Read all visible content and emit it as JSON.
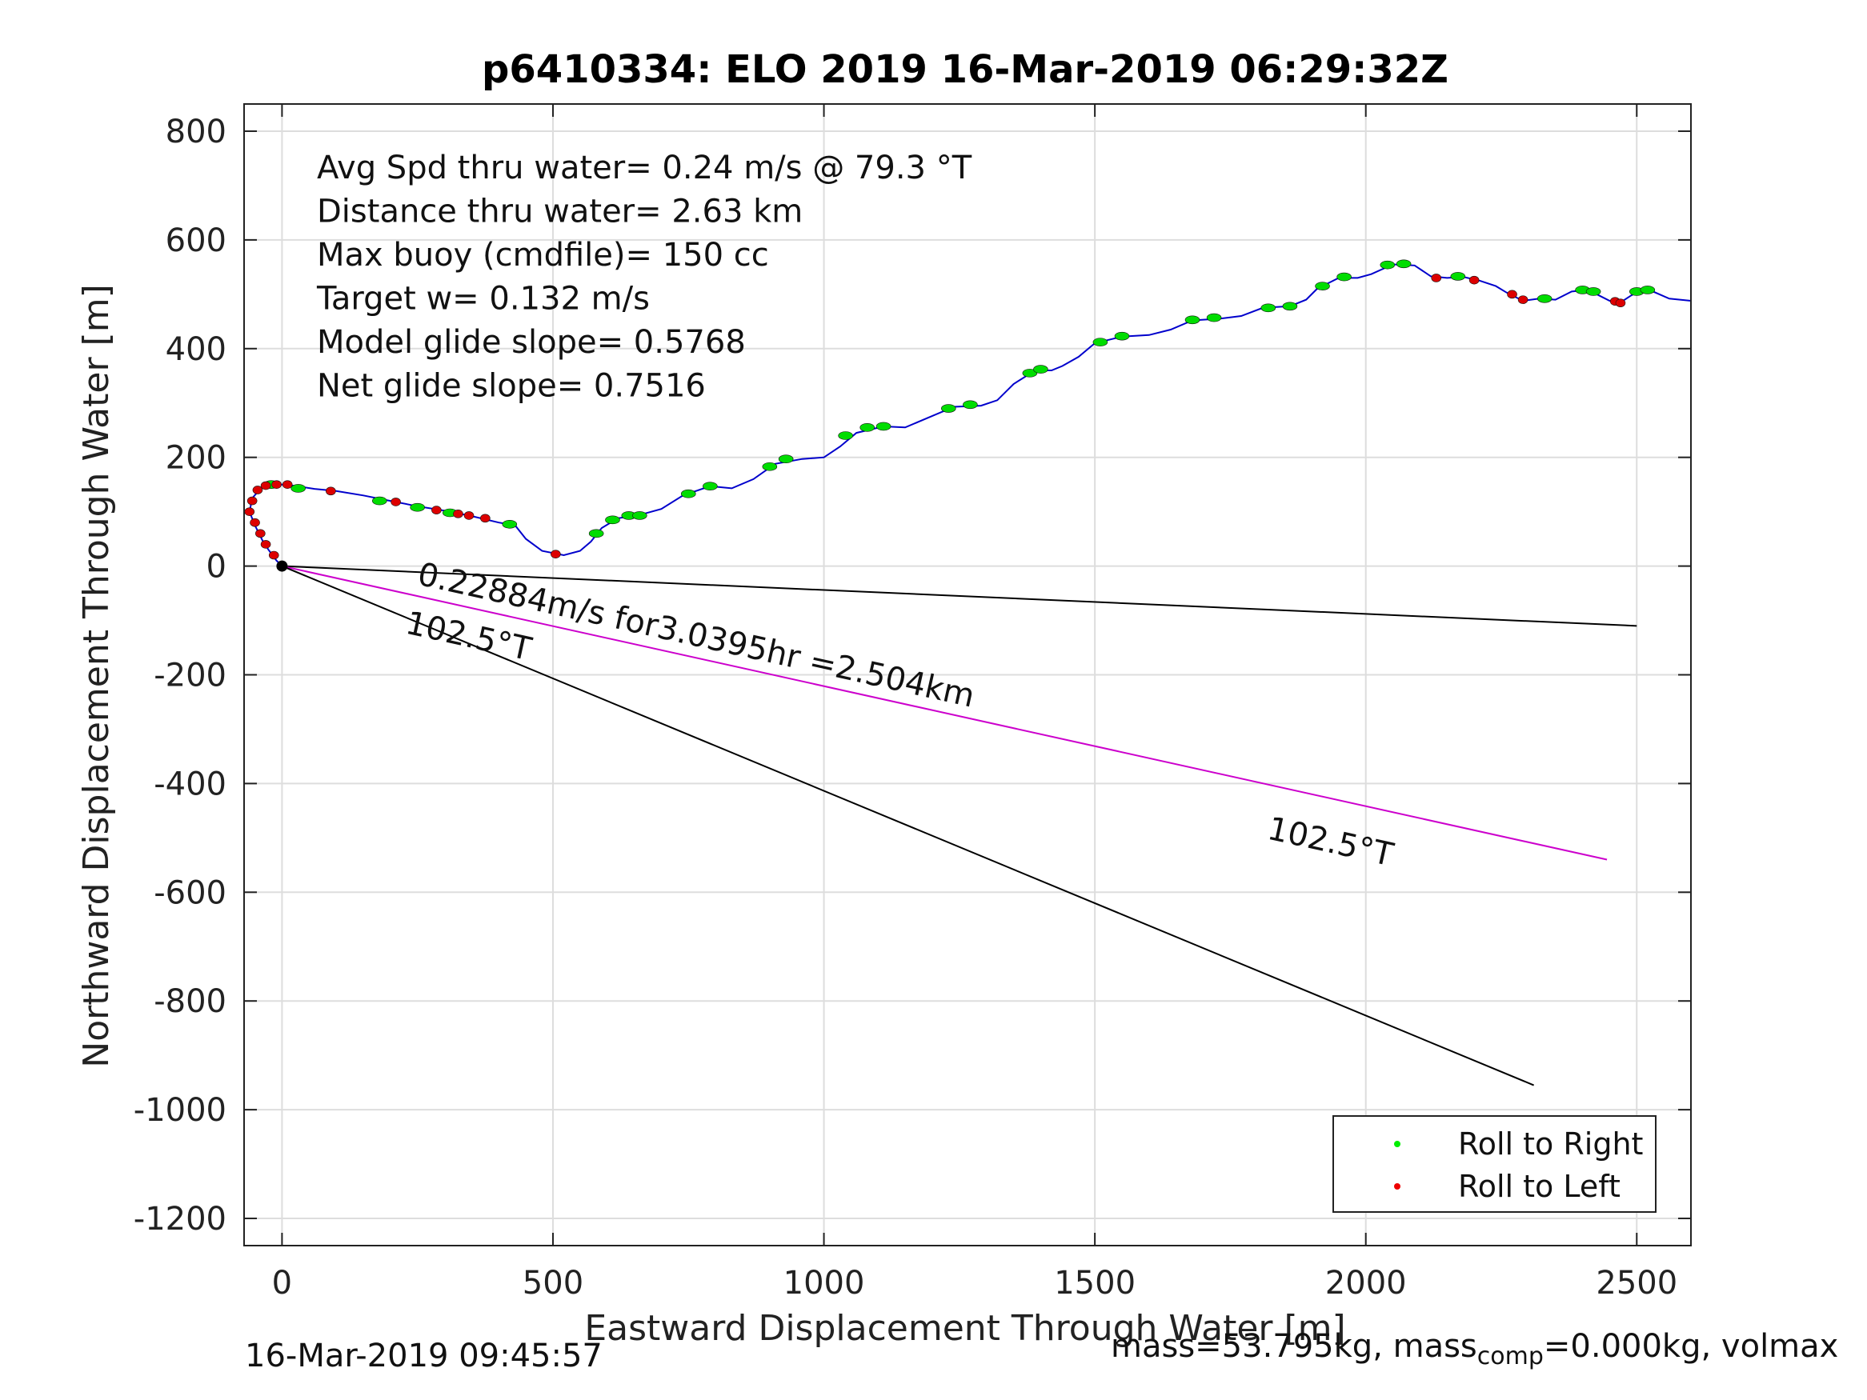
{
  "chart_data": {
    "type": "scatter",
    "title": "p6410334: ELO 2019 16-Mar-2019 06:29:32Z",
    "xlabel": "Eastward Displacement Through Water [m]",
    "ylabel": "Northward Displacement Through Water [m]",
    "xlim": [
      -70,
      2600
    ],
    "ylim": [
      -1250,
      850
    ],
    "xticks": [
      0,
      500,
      1000,
      1500,
      2000,
      2500
    ],
    "yticks": [
      800,
      600,
      400,
      200,
      0,
      -200,
      -400,
      -600,
      -800,
      -1000,
      -1200
    ],
    "grid": true,
    "legend_position": "bottom-right",
    "legend": [
      {
        "label": "Roll to Right",
        "color": "#00ee00"
      },
      {
        "label": "Roll to Left",
        "color": "#ee0000"
      }
    ],
    "stats": [
      "Avg Spd thru water=  0.24 m/s @  79.3 °T",
      "Distance thru water=  2.63 km",
      "Max buoy (cmdfile)= 150 cc",
      "Target w= 0.132 m/s",
      "Model glide slope= 0.5768",
      "Net glide slope= 0.7516"
    ],
    "annotations": [
      {
        "text": "0.22884m/s for3.0395hr =2.504km",
        "x": 250,
        "y": 0
      },
      {
        "text": "102.5°T",
        "x": 225,
        "y": -80
      },
      {
        "text": "102.5°T",
        "x": 1810,
        "y": -480
      }
    ],
    "track": [
      [
        0,
        0
      ],
      [
        -10,
        10
      ],
      [
        -25,
        30
      ],
      [
        -35,
        45
      ],
      [
        -50,
        75
      ],
      [
        -60,
        100
      ],
      [
        -55,
        125
      ],
      [
        -40,
        142
      ],
      [
        -20,
        150
      ],
      [
        0,
        150
      ],
      [
        20,
        148
      ],
      [
        60,
        142
      ],
      [
        100,
        138
      ],
      [
        150,
        130
      ],
      [
        200,
        120
      ],
      [
        250,
        110
      ],
      [
        300,
        102
      ],
      [
        350,
        92
      ],
      [
        400,
        80
      ],
      [
        430,
        75
      ],
      [
        450,
        50
      ],
      [
        480,
        28
      ],
      [
        520,
        20
      ],
      [
        550,
        28
      ],
      [
        570,
        45
      ],
      [
        590,
        70
      ],
      [
        620,
        88
      ],
      [
        660,
        94
      ],
      [
        700,
        105
      ],
      [
        740,
        130
      ],
      [
        790,
        147
      ],
      [
        830,
        143
      ],
      [
        870,
        160
      ],
      [
        910,
        188
      ],
      [
        960,
        197
      ],
      [
        1000,
        200
      ],
      [
        1030,
        220
      ],
      [
        1060,
        245
      ],
      [
        1110,
        257
      ],
      [
        1150,
        255
      ],
      [
        1190,
        272
      ],
      [
        1240,
        293
      ],
      [
        1290,
        295
      ],
      [
        1320,
        305
      ],
      [
        1350,
        335
      ],
      [
        1390,
        360
      ],
      [
        1420,
        360
      ],
      [
        1440,
        368
      ],
      [
        1470,
        385
      ],
      [
        1500,
        410
      ],
      [
        1550,
        422
      ],
      [
        1600,
        425
      ],
      [
        1640,
        435
      ],
      [
        1680,
        452
      ],
      [
        1730,
        455
      ],
      [
        1770,
        460
      ],
      [
        1810,
        475
      ],
      [
        1860,
        478
      ],
      [
        1890,
        490
      ],
      [
        1910,
        510
      ],
      [
        1950,
        530
      ],
      [
        1985,
        530
      ],
      [
        2010,
        537
      ],
      [
        2050,
        555
      ],
      [
        2090,
        553
      ],
      [
        2120,
        533
      ],
      [
        2150,
        530
      ],
      [
        2180,
        532
      ],
      [
        2210,
        525
      ],
      [
        2240,
        515
      ],
      [
        2260,
        503
      ],
      [
        2290,
        488
      ],
      [
        2320,
        492
      ],
      [
        2350,
        490
      ],
      [
        2380,
        505
      ],
      [
        2410,
        508
      ],
      [
        2430,
        498
      ],
      [
        2450,
        488
      ],
      [
        2470,
        485
      ],
      [
        2490,
        498
      ],
      [
        2510,
        508
      ],
      [
        2530,
        505
      ],
      [
        2560,
        492
      ],
      [
        2600,
        488
      ]
    ],
    "roll_right": [
      [
        -20,
        150
      ],
      [
        30,
        143
      ],
      [
        180,
        120
      ],
      [
        250,
        108
      ],
      [
        310,
        98
      ],
      [
        420,
        77
      ],
      [
        580,
        60
      ],
      [
        610,
        85
      ],
      [
        640,
        93
      ],
      [
        660,
        93
      ],
      [
        750,
        133
      ],
      [
        790,
        147
      ],
      [
        900,
        183
      ],
      [
        930,
        197
      ],
      [
        1040,
        240
      ],
      [
        1080,
        255
      ],
      [
        1110,
        257
      ],
      [
        1230,
        290
      ],
      [
        1270,
        297
      ],
      [
        1380,
        355
      ],
      [
        1400,
        362
      ],
      [
        1510,
        412
      ],
      [
        1550,
        423
      ],
      [
        1680,
        453
      ],
      [
        1720,
        457
      ],
      [
        1820,
        475
      ],
      [
        1860,
        478
      ],
      [
        1920,
        515
      ],
      [
        1960,
        532
      ],
      [
        2040,
        554
      ],
      [
        2070,
        556
      ],
      [
        2170,
        533
      ],
      [
        2330,
        492
      ],
      [
        2400,
        508
      ],
      [
        2420,
        505
      ],
      [
        2500,
        505
      ],
      [
        2520,
        508
      ]
    ],
    "roll_left": [
      [
        -55,
        120
      ],
      [
        -60,
        100
      ],
      [
        -50,
        80
      ],
      [
        -40,
        60
      ],
      [
        -30,
        40
      ],
      [
        -15,
        20
      ],
      [
        -45,
        140
      ],
      [
        -30,
        148
      ],
      [
        -10,
        150
      ],
      [
        10,
        150
      ],
      [
        90,
        138
      ],
      [
        210,
        118
      ],
      [
        285,
        103
      ],
      [
        325,
        96
      ],
      [
        345,
        93
      ],
      [
        375,
        88
      ],
      [
        505,
        22
      ],
      [
        2130,
        530
      ],
      [
        2200,
        526
      ],
      [
        2270,
        500
      ],
      [
        2290,
        490
      ],
      [
        2460,
        487
      ],
      [
        2470,
        484
      ]
    ],
    "lines": [
      {
        "name": "",
        "color": "#000000",
        "points": [
          [
            0,
            0
          ],
          [
            2500,
            -110
          ]
        ]
      },
      {
        "name": "",
        "color": "#cc00cc",
        "points": [
          [
            0,
            0
          ],
          [
            2445,
            -540
          ]
        ]
      },
      {
        "name": "",
        "color": "#000000",
        "points": [
          [
            0,
            0
          ],
          [
            2310,
            -955
          ]
        ]
      }
    ]
  },
  "footer": {
    "timestamp": "16-Mar-2019 09:45:57",
    "mass_text": "mass=53.795kg, mass",
    "mass_sub": "comp",
    "mass_tail": "=0.000kg, volmax"
  }
}
